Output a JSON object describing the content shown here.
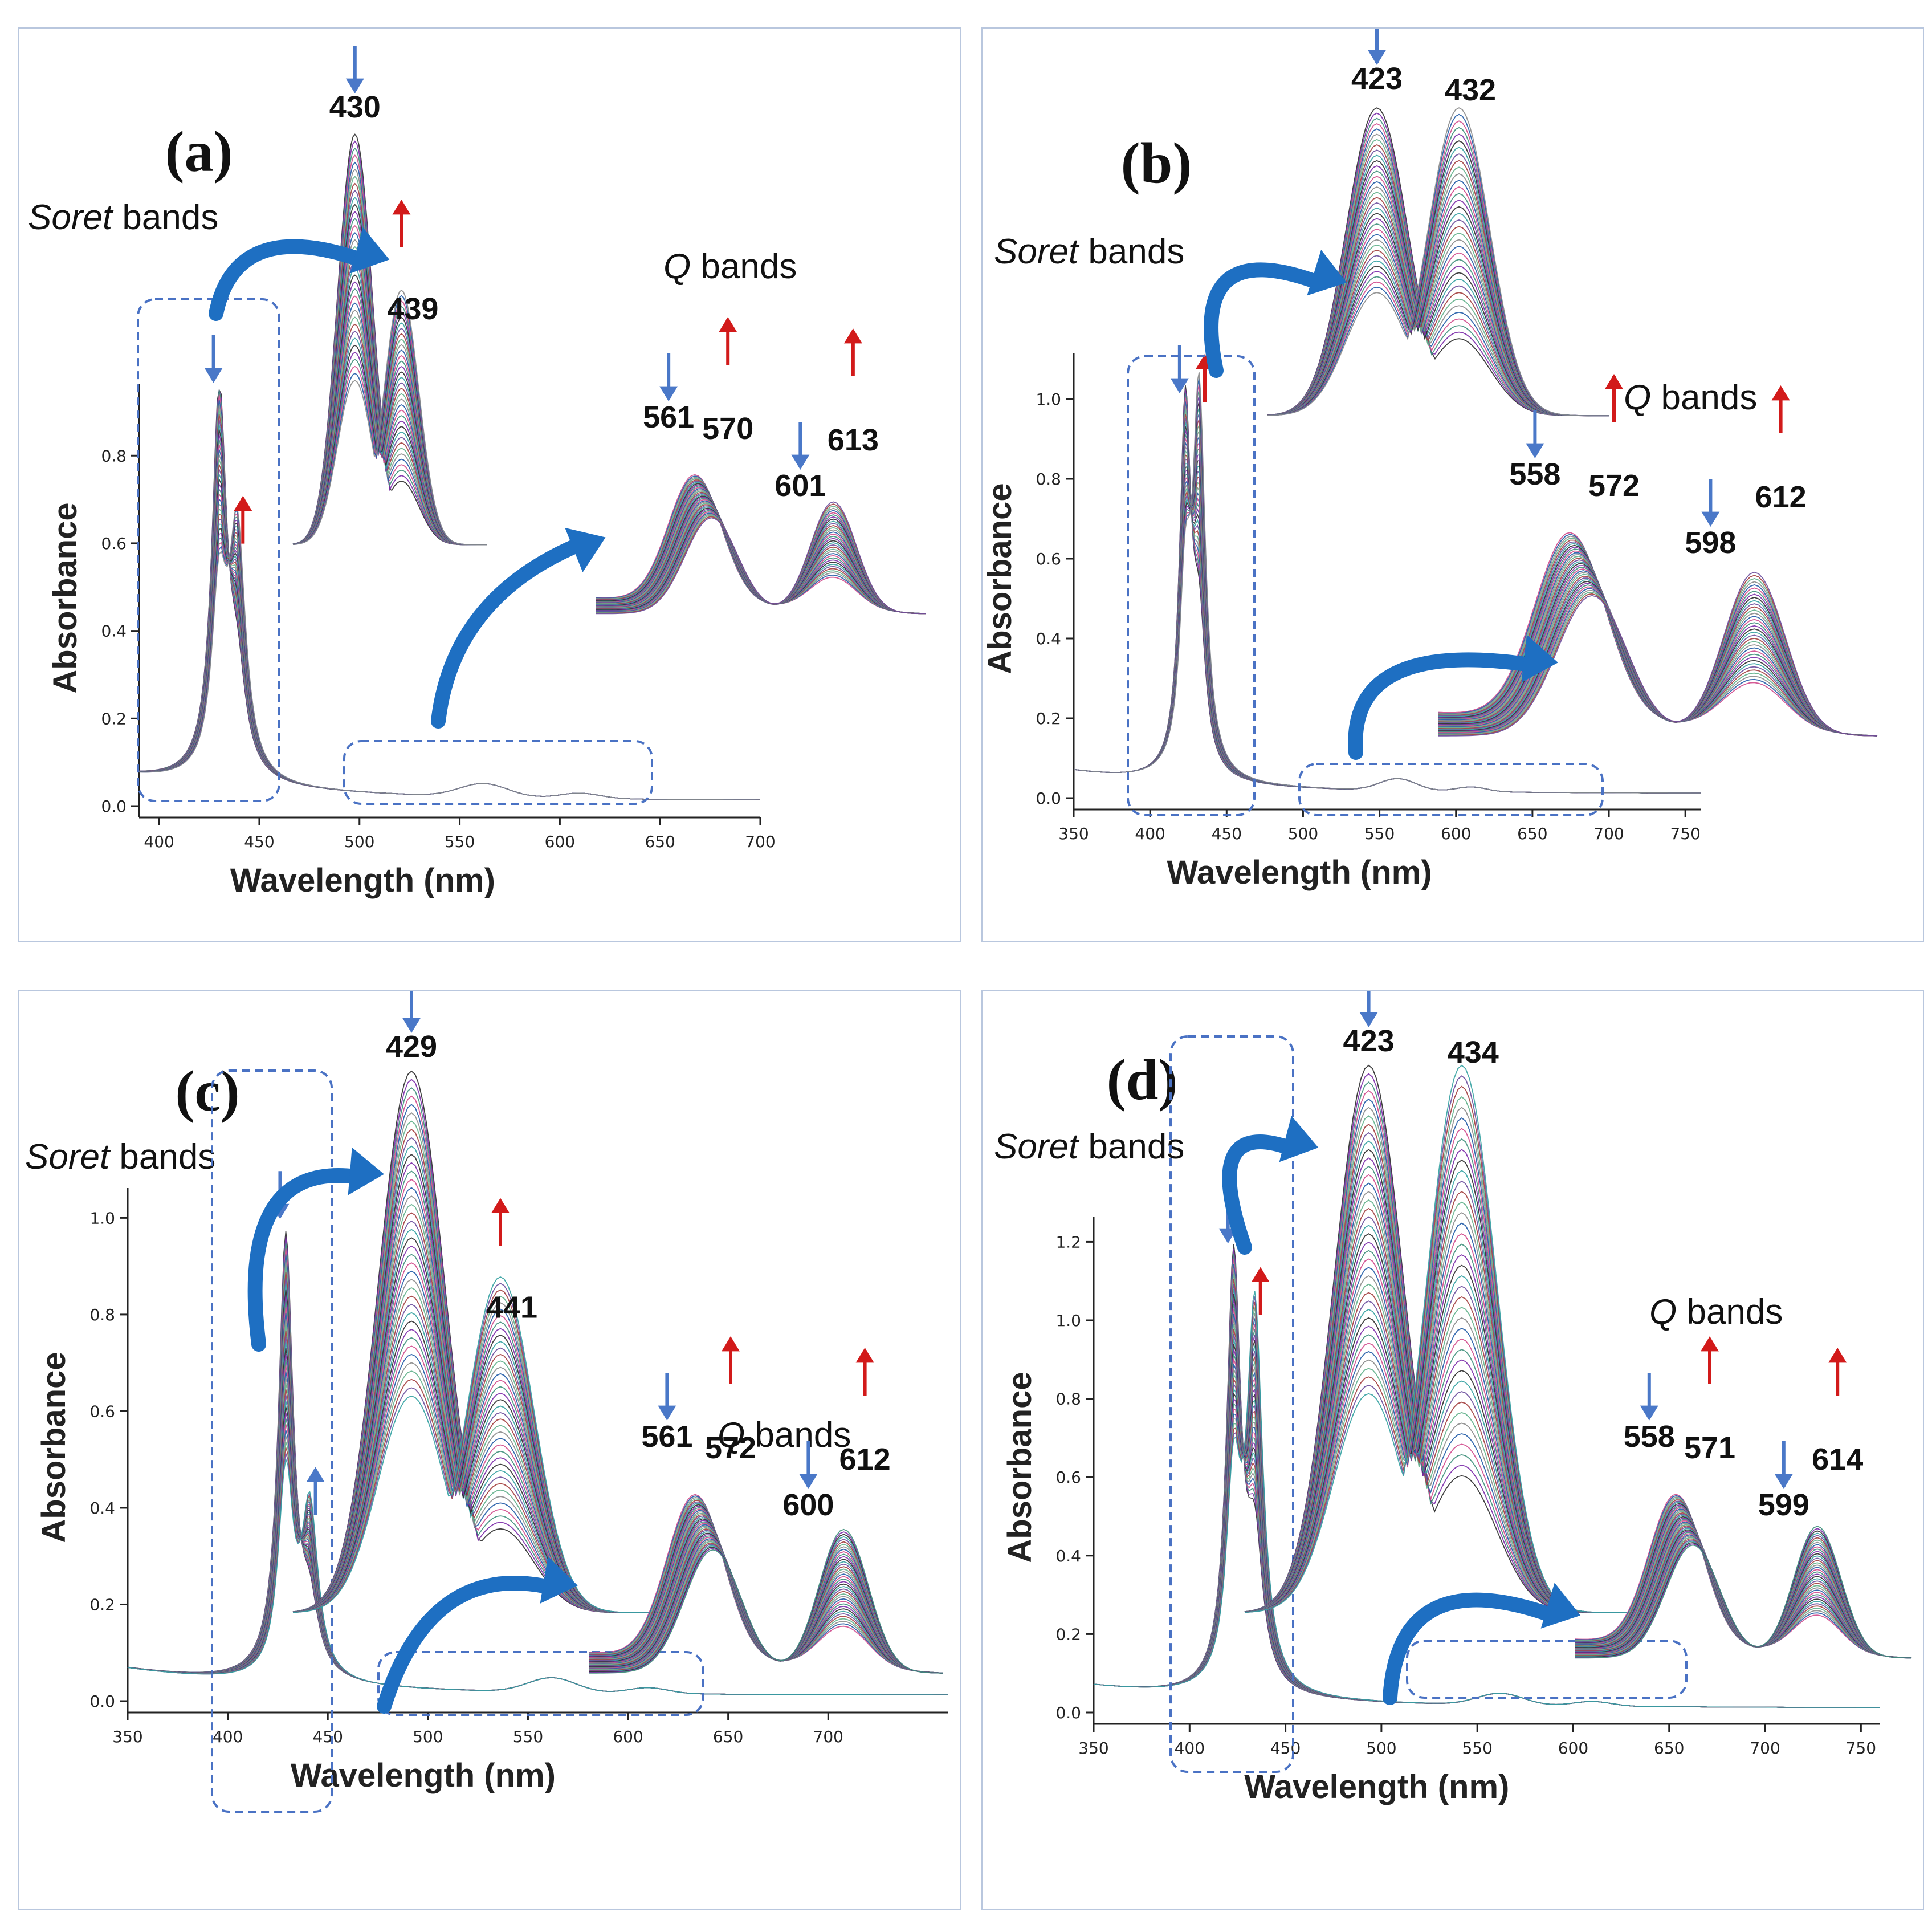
{
  "colors": {
    "arrow_down": "#4a78c8",
    "arrow_up": "#d21a1a",
    "curved_arrow": "#1e6fc2",
    "dashed_box": "#4a72c4",
    "panel_border": "#b9c7de",
    "spectra_palette": [
      "#2b2b2b",
      "#7b2aa8",
      "#3d8f7a",
      "#d04a8c",
      "#1f5aa6",
      "#8a8a8a",
      "#5fb08a",
      "#a23d3d",
      "#6a4c9c",
      "#33a1a1"
    ]
  },
  "chart_data": [
    {
      "panel": "(a)",
      "type": "line",
      "xlabel": "Wavelength (nm)",
      "ylabel": "Absorbance",
      "xlim": [
        390,
        700
      ],
      "ylim": [
        0,
        0.95
      ],
      "xticks": [
        "400",
        "450",
        "500",
        "550",
        "600",
        "650",
        "700"
      ],
      "yticks": [
        "0.0",
        "0.2",
        "0.4",
        "0.6",
        "0.8"
      ],
      "soret_label": "bands",
      "soret_italic": "Soret",
      "q_label": "bands",
      "q_italic": "Q",
      "soret_peaks": [
        {
          "label": "430",
          "dir": "down",
          "x": 430,
          "y": 0.88
        },
        {
          "label": "439",
          "dir": "up",
          "x": 439,
          "y": 0.56
        }
      ],
      "q_peaks": [
        {
          "label": "561",
          "dir": "down",
          "x": 561
        },
        {
          "label": "570",
          "dir": "up",
          "x": 570
        },
        {
          "label": "601",
          "dir": "down",
          "x": 601
        },
        {
          "label": "613",
          "dir": "up",
          "x": 613
        }
      ],
      "series_count": 36
    },
    {
      "panel": "(b)",
      "type": "line",
      "xlabel": "Wavelength (nm)",
      "ylabel": "Absorbance",
      "xlim": [
        350,
        760
      ],
      "ylim": [
        0,
        1.1
      ],
      "xticks": [
        "350",
        "400",
        "450",
        "500",
        "550",
        "600",
        "650",
        "700",
        "750"
      ],
      "yticks": [
        "0.0",
        "0.2",
        "0.4",
        "0.6",
        "0.8",
        "1.0"
      ],
      "soret_label": "bands",
      "soret_italic": "Soret",
      "q_label": "bands",
      "q_italic": "Q",
      "soret_peaks": [
        {
          "label": "423",
          "dir": "down",
          "x": 423,
          "y": 0.92
        },
        {
          "label": "432",
          "dir": "up",
          "x": 432,
          "y": 0.95
        }
      ],
      "q_peaks": [
        {
          "label": "558",
          "dir": "down",
          "x": 558
        },
        {
          "label": "572",
          "dir": "up",
          "x": 572
        },
        {
          "label": "598",
          "dir": "down",
          "x": 598
        },
        {
          "label": "612",
          "dir": "up",
          "x": 612
        }
      ],
      "series_count": 36
    },
    {
      "panel": "(c)",
      "type": "line",
      "xlabel": "Wavelength (nm)",
      "ylabel": "Absorbance",
      "xlim": [
        350,
        760
      ],
      "ylim": [
        0,
        1.05
      ],
      "xticks": [
        "350",
        "400",
        "450",
        "500",
        "550",
        "600",
        "650",
        "700"
      ],
      "yticks": [
        "0.0",
        "0.2",
        "0.4",
        "0.6",
        "0.8",
        "1.0"
      ],
      "soret_label": "bands",
      "soret_italic": "Soret",
      "q_label": "bands",
      "q_italic": "Q",
      "soret_peaks": [
        {
          "label": "429",
          "dir": "down",
          "x": 429,
          "y": 0.92
        },
        {
          "label": "441",
          "dir": "up",
          "x": 441,
          "y": 0.35
        }
      ],
      "q_peaks": [
        {
          "label": "561",
          "dir": "down",
          "x": 561
        },
        {
          "label": "572",
          "dir": "up",
          "x": 572
        },
        {
          "label": "600",
          "dir": "down",
          "x": 600
        },
        {
          "label": "612",
          "dir": "up",
          "x": 612
        }
      ],
      "series_count": 40
    },
    {
      "panel": "(d)",
      "type": "line",
      "xlabel": "Wavelength (nm)",
      "ylabel": "Absorbance",
      "xlim": [
        350,
        760
      ],
      "ylim": [
        0,
        1.25
      ],
      "xticks": [
        "350",
        "400",
        "450",
        "500",
        "550",
        "600",
        "650",
        "700",
        "750"
      ],
      "yticks": [
        "0.0",
        "0.2",
        "0.4",
        "0.6",
        "0.8",
        "1.0",
        "1.2"
      ],
      "soret_label": "bands",
      "soret_italic": "Soret",
      "q_label": "bands",
      "q_italic": "Q",
      "soret_peaks": [
        {
          "label": "423",
          "dir": "down",
          "x": 423,
          "y": 1.1
        },
        {
          "label": "434",
          "dir": "up",
          "x": 434,
          "y": 0.97
        }
      ],
      "q_peaks": [
        {
          "label": "558",
          "dir": "down",
          "x": 558
        },
        {
          "label": "571",
          "dir": "up",
          "x": 571
        },
        {
          "label": "599",
          "dir": "down",
          "x": 599
        },
        {
          "label": "614",
          "dir": "up",
          "x": 614
        }
      ],
      "series_count": 40
    }
  ]
}
